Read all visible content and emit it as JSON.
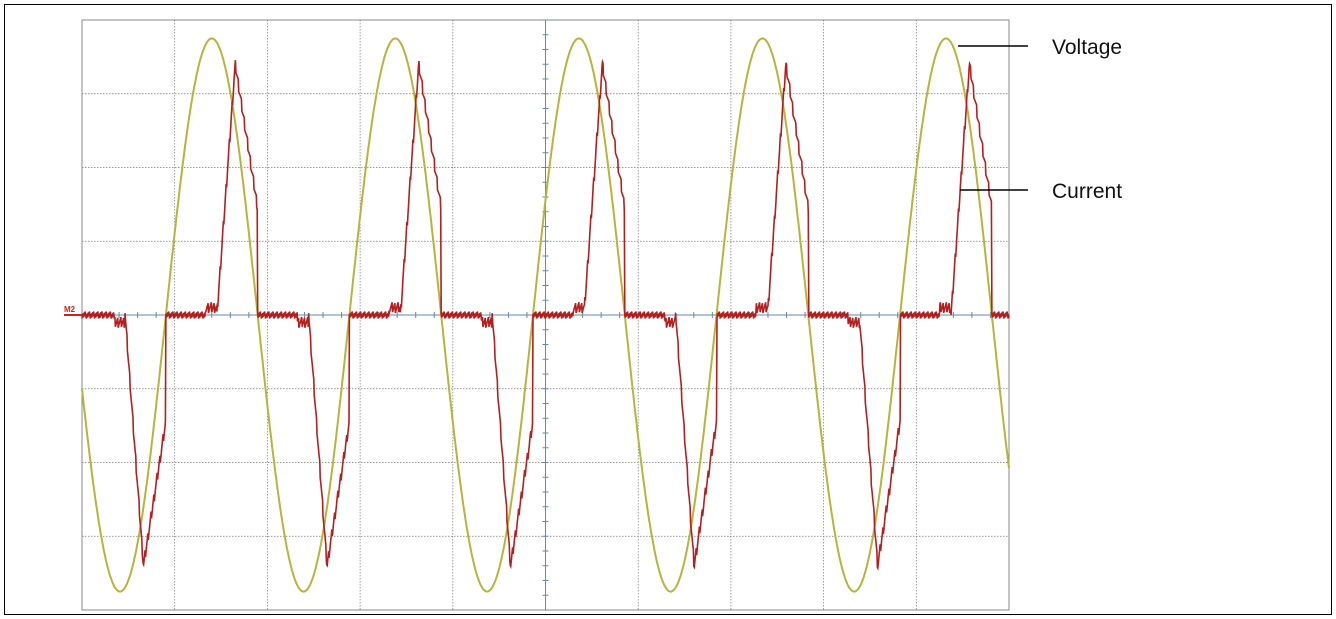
{
  "chart_data": {
    "type": "line",
    "title": "",
    "xlabel": "",
    "ylabel": "",
    "grid": true,
    "grid_divisions": {
      "x": 10,
      "y": 8
    },
    "xlim": [
      0,
      10
    ],
    "ylim": [
      -4,
      4
    ],
    "ground_marker": "M2",
    "colors": {
      "voltage": "#b5b53a",
      "current": "#b31f1f",
      "grid": "#777777",
      "axis": "#6688aa",
      "marker": "#cc2222"
    },
    "series": [
      {
        "name": "Voltage",
        "waveform": "sine",
        "amplitude": 3.75,
        "period_div": 1.98,
        "phase_first_peak_div": 1.4
      },
      {
        "name": "Current",
        "waveform": "double-hump pulse",
        "peak_div": 3.4,
        "second_hump_div": 3.0,
        "notch_div": 1.0,
        "conduction_start_div": 0.7,
        "conduction_end_div": 2.1,
        "period_div": 1.98
      }
    ]
  }
}
